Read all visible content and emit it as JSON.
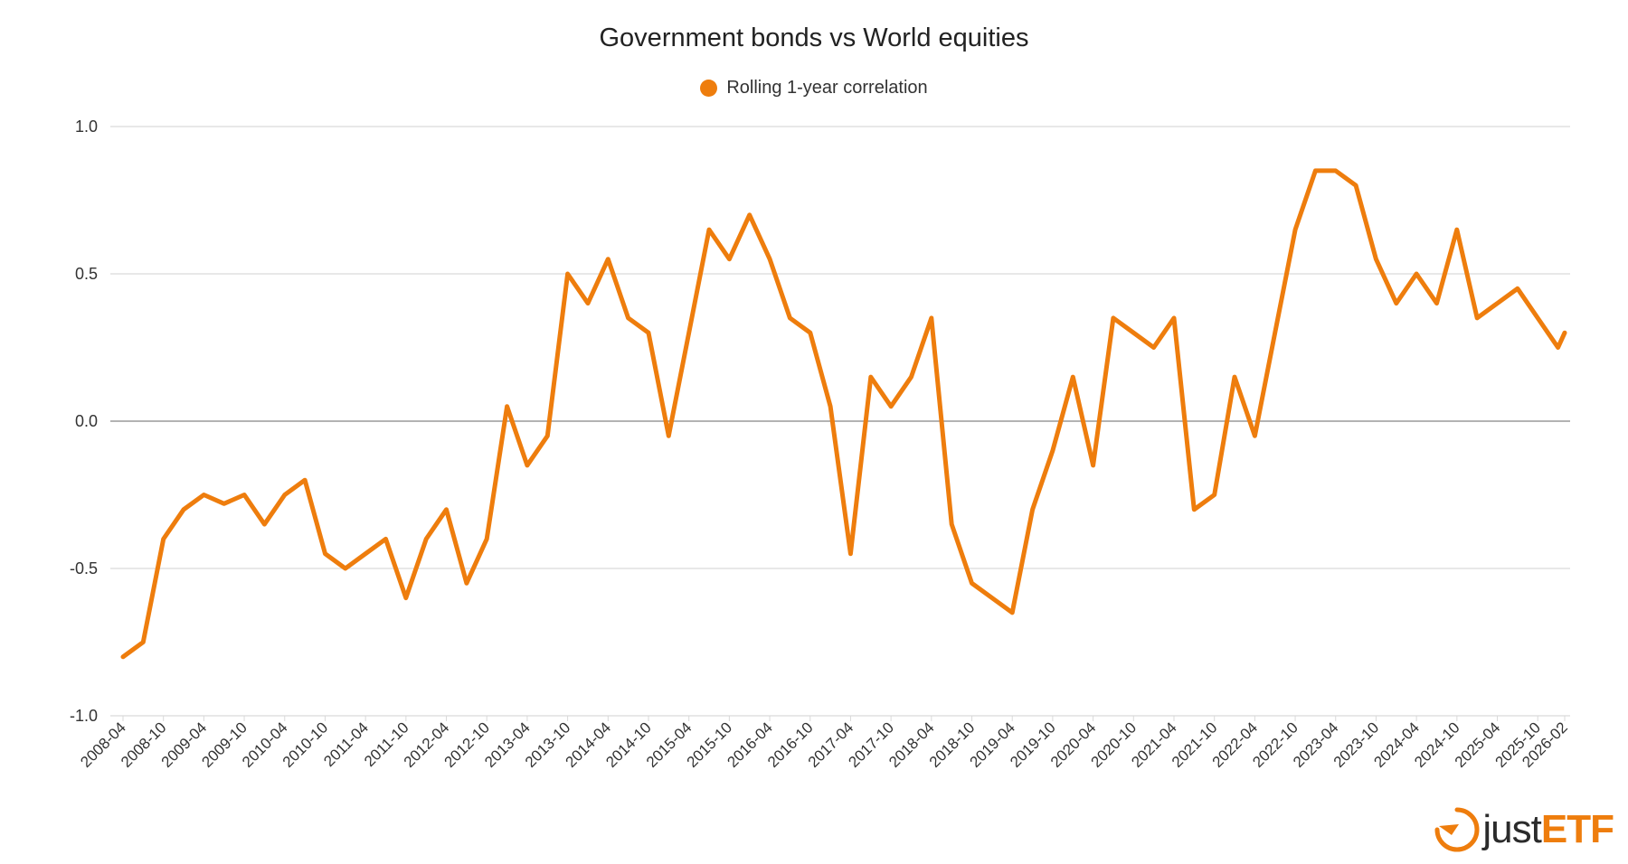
{
  "colors": {
    "line": "#EE7D0D",
    "grid": "#d9d9d9",
    "zero": "#9a9a9a",
    "axis": "#333333"
  },
  "logo": {
    "text_just": "just",
    "text_etf": "ETF",
    "icon": "justetf-logo-icon"
  },
  "chart_data": {
    "type": "line",
    "title": "Government bonds vs World equities",
    "xlabel": "",
    "ylabel": "",
    "ylim": [
      -1.0,
      1.0
    ],
    "yticks": [
      "1.0",
      "0.5",
      "0.0",
      "-0.5",
      "-1.0"
    ],
    "ytick_values": [
      1.0,
      0.5,
      0.0,
      -0.5,
      -1.0
    ],
    "grid": true,
    "legend_position": "top-center",
    "x_tick_labels": [
      "2008-04",
      "2008-10",
      "2009-04",
      "2009-10",
      "2010-04",
      "2010-10",
      "2011-04",
      "2011-10",
      "2012-04",
      "2012-10",
      "2013-04",
      "2013-10",
      "2014-04",
      "2014-10",
      "2015-04",
      "2015-10",
      "2016-04",
      "2016-10",
      "2017-04",
      "2017-10",
      "2018-04",
      "2018-10",
      "2019-04",
      "2019-10",
      "2020-04",
      "2020-10",
      "2021-04",
      "2021-10",
      "2022-04",
      "2022-10",
      "2023-04",
      "2023-10",
      "2024-04",
      "2024-10",
      "2025-04",
      "2025-10",
      "2026-02"
    ],
    "series": [
      {
        "name": "Rolling 1-year correlation",
        "x": [
          "2008-04",
          "2008-07",
          "2008-10",
          "2009-01",
          "2009-04",
          "2009-07",
          "2009-10",
          "2010-01",
          "2010-04",
          "2010-07",
          "2010-10",
          "2011-01",
          "2011-04",
          "2011-07",
          "2011-10",
          "2012-01",
          "2012-04",
          "2012-07",
          "2012-10",
          "2013-01",
          "2013-04",
          "2013-07",
          "2013-10",
          "2014-01",
          "2014-04",
          "2014-07",
          "2014-10",
          "2015-01",
          "2015-04",
          "2015-07",
          "2015-10",
          "2016-01",
          "2016-04",
          "2016-07",
          "2016-10",
          "2017-01",
          "2017-04",
          "2017-07",
          "2017-10",
          "2018-01",
          "2018-04",
          "2018-07",
          "2018-10",
          "2019-01",
          "2019-04",
          "2019-07",
          "2019-10",
          "2020-01",
          "2020-04",
          "2020-07",
          "2020-10",
          "2021-01",
          "2021-04",
          "2021-07",
          "2021-10",
          "2022-01",
          "2022-04",
          "2022-07",
          "2022-10",
          "2023-01",
          "2023-04",
          "2023-07",
          "2023-10",
          "2024-01",
          "2024-04",
          "2024-07",
          "2024-10",
          "2025-01",
          "2025-04",
          "2025-07",
          "2025-10",
          "2026-01",
          "2026-02"
        ],
        "values": [
          -0.8,
          -0.75,
          -0.4,
          -0.3,
          -0.25,
          -0.28,
          -0.25,
          -0.35,
          -0.25,
          -0.2,
          -0.45,
          -0.5,
          -0.45,
          -0.4,
          -0.6,
          -0.4,
          -0.3,
          -0.55,
          -0.4,
          0.05,
          -0.15,
          -0.05,
          0.5,
          0.4,
          0.55,
          0.35,
          0.3,
          -0.05,
          0.3,
          0.65,
          0.55,
          0.7,
          0.55,
          0.35,
          0.3,
          0.05,
          -0.45,
          0.15,
          0.05,
          0.15,
          0.35,
          -0.35,
          -0.55,
          -0.6,
          -0.65,
          -0.3,
          -0.1,
          0.15,
          -0.15,
          0.35,
          0.3,
          0.25,
          0.35,
          -0.3,
          -0.25,
          0.15,
          -0.05,
          0.3,
          0.65,
          0.85,
          0.85,
          0.8,
          0.55,
          0.4,
          0.5,
          0.4,
          0.65,
          0.35,
          0.4,
          0.45,
          0.35,
          0.25,
          0.3
        ]
      }
    ]
  }
}
